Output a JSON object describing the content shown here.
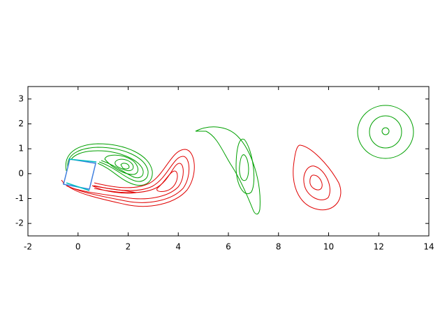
{
  "chart_data": {
    "type": "contour",
    "xlim": [
      -2,
      14
    ],
    "ylim": [
      -2.5,
      3.5
    ],
    "xticks": [
      -2,
      0,
      2,
      4,
      6,
      8,
      10,
      12,
      14
    ],
    "yticks": [
      -2,
      -1,
      0,
      1,
      2,
      3
    ]
  }
}
